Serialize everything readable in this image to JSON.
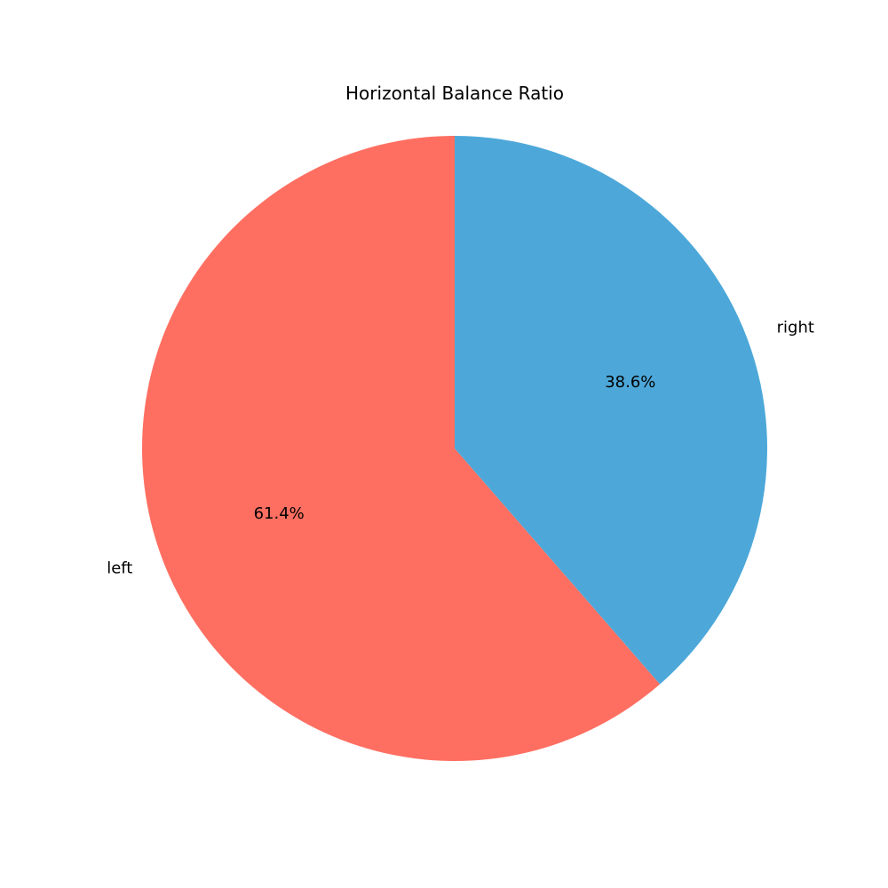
{
  "chart_data": {
    "type": "pie",
    "title": "Horizontal Balance Ratio",
    "categories": [
      "left",
      "right"
    ],
    "values": [
      61.4,
      38.6
    ],
    "percent_labels": [
      "61.4%",
      "38.6%"
    ],
    "colors": [
      "#ff6f61",
      "#4da8d9"
    ],
    "start_angle_deg": 90,
    "direction": "counterclockwise",
    "legend": "none"
  }
}
